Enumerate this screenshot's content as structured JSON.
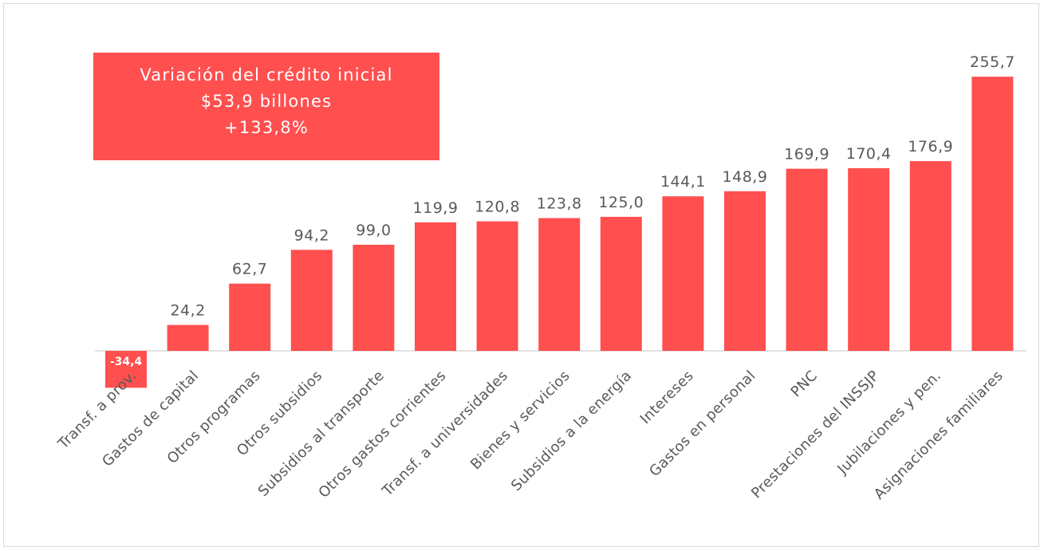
{
  "colors": {
    "bar": "#ff4f4f",
    "axis": "#d9d9d9",
    "label": "#595959",
    "negative_label": "#ffffff"
  },
  "info_box": {
    "line1": "Variación del crédito inicial",
    "line2": "$53,9  billones",
    "line3": "+133,8%"
  },
  "chart_data": {
    "type": "bar",
    "title": "",
    "xlabel": "",
    "ylabel": "",
    "categories": [
      "Transf. a prov.",
      "Gastos de capital",
      "Otros programas",
      "Otros subsidios",
      "Subsidios al transporte",
      "Otros gastos corrientes",
      "Transf. a universidades",
      "Bienes y servicios",
      "Subsidios a la energía",
      "Intereses",
      "Gastos en personal",
      "PNC",
      "Prestaciones del INSSJP",
      "Jubilaciones y pen.",
      "Asignaciones familiares"
    ],
    "values": [
      -34.4,
      24.2,
      62.7,
      94.2,
      99.0,
      119.9,
      120.8,
      123.8,
      125.0,
      144.1,
      148.9,
      169.9,
      170.4,
      176.9,
      255.7
    ],
    "value_labels": [
      "-34,4",
      "24,2",
      "62,7",
      "94,2",
      "99,0",
      "119,9",
      "120,8",
      "123,8",
      "125,0",
      "144,1",
      "148,9",
      "169,9",
      "170,4",
      "176,9",
      "255,7"
    ],
    "ylim": [
      -40,
      270
    ],
    "grid": false,
    "legend": "none"
  }
}
